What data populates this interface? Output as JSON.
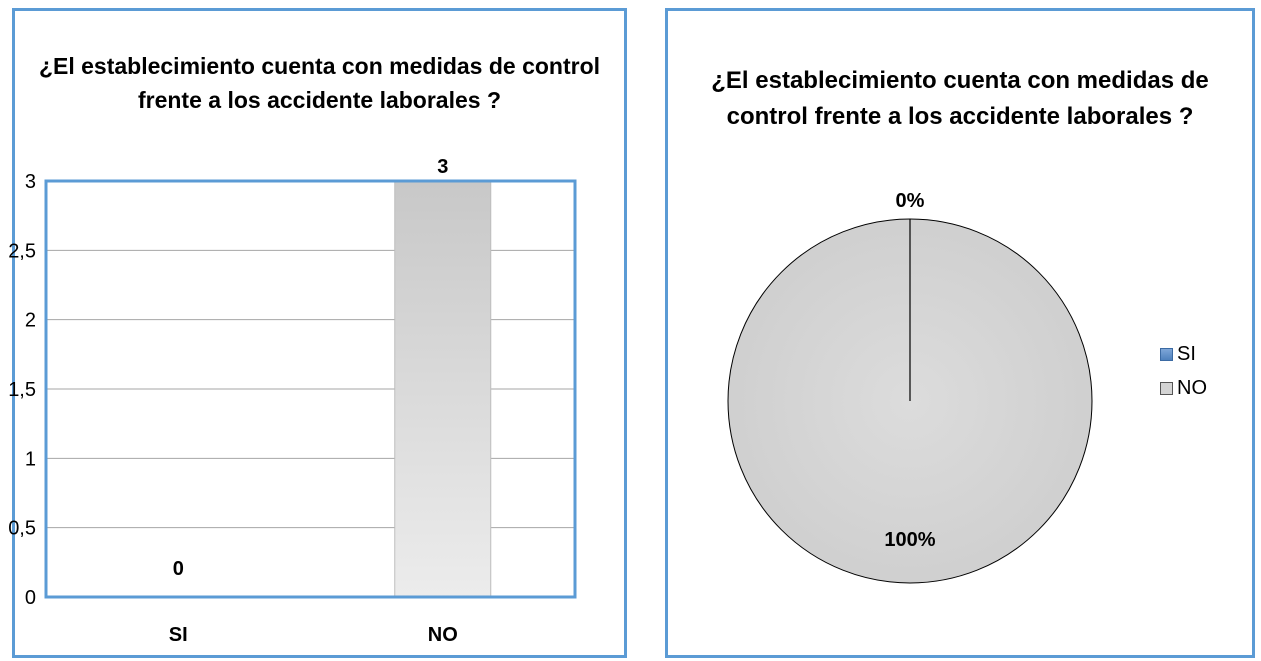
{
  "chart_data": [
    {
      "type": "bar",
      "title": "¿El establecimiento cuenta con medidas de control frente a los accidente laborales ?",
      "categories": [
        "SI",
        "NO"
      ],
      "values": [
        0,
        3
      ],
      "data_labels": [
        "0",
        "3"
      ],
      "ylim": [
        0,
        3
      ],
      "yticks": [
        0,
        0.5,
        1,
        1.5,
        2,
        2.5,
        3
      ],
      "ytick_labels": [
        "0",
        "0,5",
        "1",
        "1,5",
        "2",
        "2,5",
        "3"
      ],
      "grid": true,
      "colors": {
        "bar": "#cfcfcf",
        "plot_border": "#5b9bd5",
        "grid": "#a6a6a6"
      }
    },
    {
      "type": "pie",
      "title": "¿El establecimiento cuenta con medidas de control frente a los accidente laborales ?",
      "labels": [
        "SI",
        "NO"
      ],
      "values": [
        0,
        3
      ],
      "data_labels": [
        "0%",
        "100%"
      ],
      "legend": "right",
      "colors": {
        "SI": "#4f81bd",
        "NO": "#d4d4d4"
      }
    }
  ]
}
